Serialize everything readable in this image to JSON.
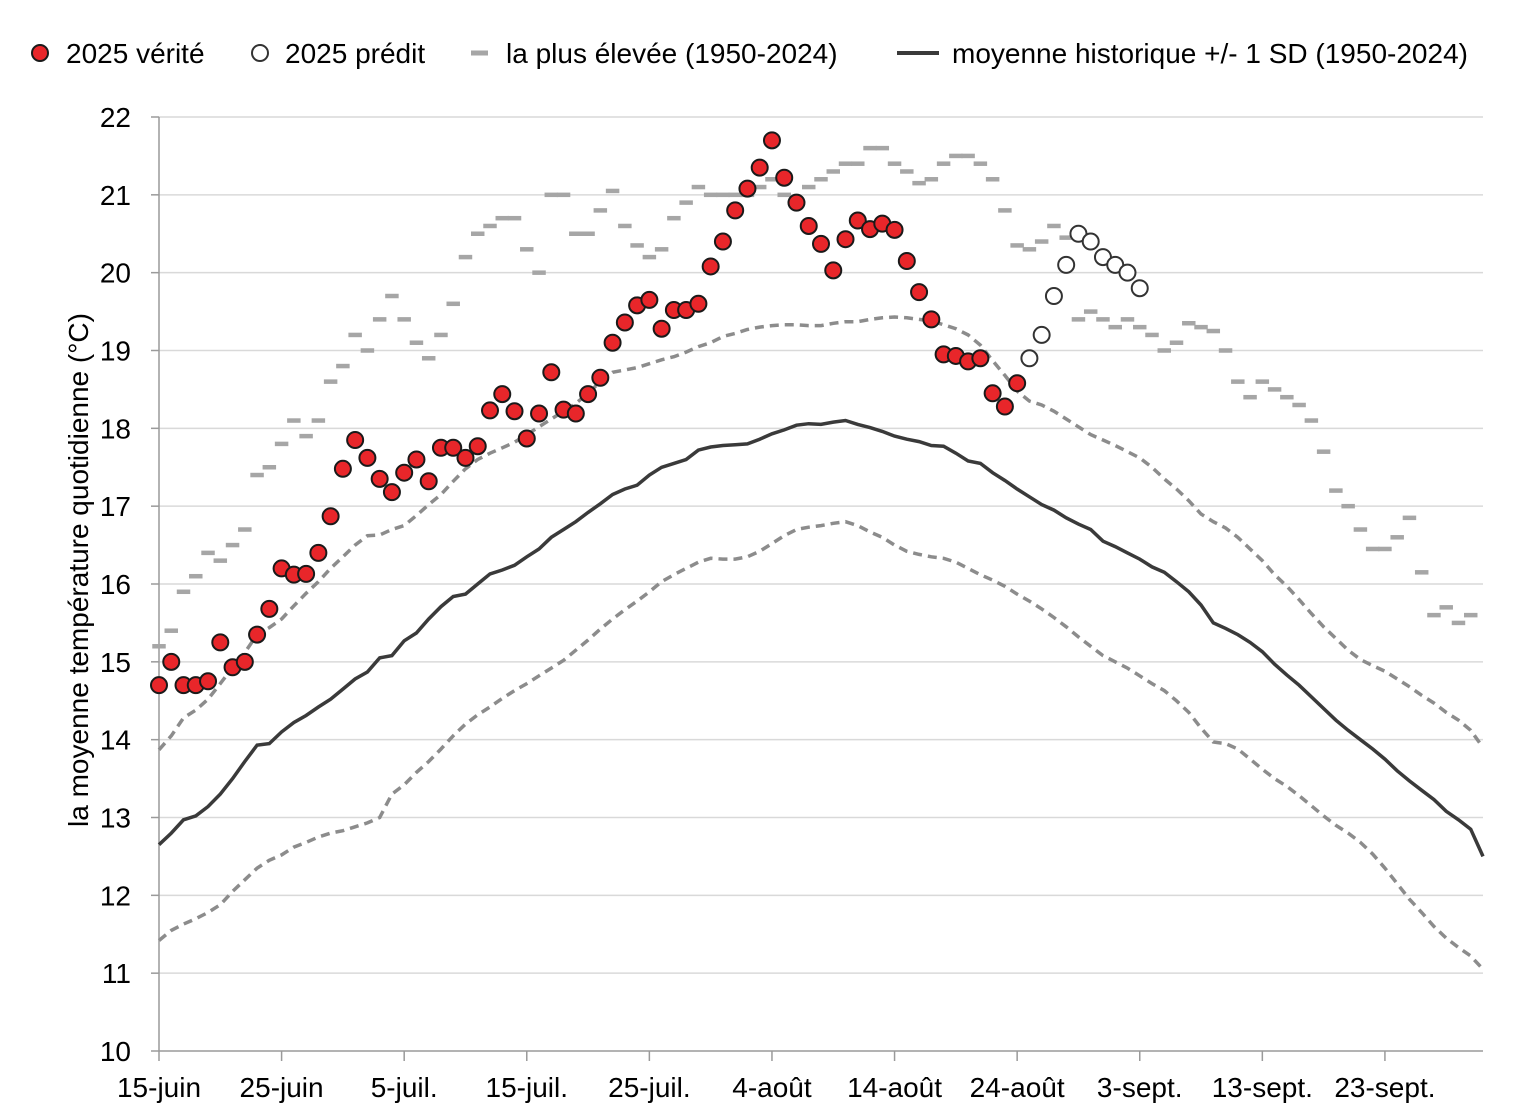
{
  "chart_data": {
    "type": "line",
    "ylabel": "la moyenne température quotidienne (°C)",
    "xlabel": "",
    "ylim": [
      10,
      22
    ],
    "y_ticks": [
      10,
      11,
      12,
      13,
      14,
      15,
      16,
      17,
      18,
      19,
      20,
      21,
      22
    ],
    "x_range_days": [
      0,
      108
    ],
    "x_tick_days": [
      0,
      10,
      20,
      30,
      40,
      50,
      60,
      70,
      80,
      90,
      100
    ],
    "x_tick_labels": [
      "15-juin",
      "25-juin",
      "5-juil.",
      "15-juil.",
      "25-juil.",
      "4-août",
      "14-août",
      "24-août",
      "3-sept.",
      "13-sept.",
      "23-sept."
    ],
    "grid": true,
    "legend_position": "top",
    "legend": [
      {
        "key": "truth",
        "label": "2025 vérité"
      },
      {
        "key": "predicted",
        "label": "2025 prédit"
      },
      {
        "key": "highest",
        "label": "la plus élevée (1950-2024)"
      },
      {
        "key": "mean",
        "label": "moyenne historique +/- 1 SD (1950-2024)"
      }
    ],
    "series": {
      "truth": {
        "start_day": 0,
        "values": [
          14.7,
          15.0,
          14.7,
          14.7,
          14.75,
          15.25,
          14.93,
          15.0,
          15.35,
          15.68,
          16.2,
          16.12,
          16.13,
          16.4,
          16.87,
          17.48,
          17.85,
          17.62,
          17.35,
          17.18,
          17.43,
          17.6,
          17.32,
          17.75,
          17.75,
          17.62,
          17.77,
          18.23,
          18.44,
          18.22,
          17.87,
          18.19,
          18.72,
          18.24,
          18.19,
          18.44,
          18.65,
          19.1,
          19.36,
          19.58,
          19.65,
          19.28,
          19.52,
          19.52,
          19.6,
          20.08,
          20.4,
          20.8,
          21.08,
          21.35,
          21.7,
          21.22,
          20.9,
          20.6,
          20.37,
          20.03,
          20.43,
          20.67,
          20.56,
          20.63,
          20.55,
          20.15,
          19.75,
          19.4,
          18.95,
          18.93,
          18.86,
          18.9,
          18.45,
          18.28,
          18.58
        ]
      },
      "predicted": {
        "start_day": 71,
        "values": [
          18.9,
          19.2,
          19.7,
          20.1,
          20.5,
          20.4,
          20.2,
          20.1,
          20.0,
          19.8
        ]
      },
      "highest": {
        "start_day": 0,
        "values": [
          15.2,
          15.4,
          15.9,
          16.1,
          16.4,
          16.3,
          16.5,
          16.7,
          17.4,
          17.5,
          17.8,
          18.1,
          17.9,
          18.1,
          18.6,
          18.8,
          19.2,
          19.0,
          19.4,
          19.7,
          19.4,
          19.1,
          18.9,
          19.2,
          19.6,
          20.2,
          20.5,
          20.6,
          20.7,
          20.7,
          20.3,
          20.0,
          21.0,
          21.0,
          20.5,
          20.5,
          20.8,
          21.05,
          20.6,
          20.35,
          20.2,
          20.3,
          20.7,
          20.9,
          21.1,
          21.0,
          21.0,
          21.0,
          21.0,
          21.1,
          21.2,
          21.0,
          20.9,
          21.1,
          21.2,
          21.3,
          21.4,
          21.4,
          21.6,
          21.6,
          21.4,
          21.3,
          21.15,
          21.2,
          21.4,
          21.5,
          21.5,
          21.4,
          21.2,
          20.8,
          20.35,
          20.3,
          20.4,
          20.6,
          20.45,
          19.4,
          19.5,
          19.4,
          19.3,
          19.4,
          19.3,
          19.2,
          19.0,
          19.1,
          19.35,
          19.3,
          19.25,
          19.0,
          18.6,
          18.4,
          18.6,
          18.5,
          18.4,
          18.3,
          18.1,
          17.7,
          17.2,
          17.0,
          16.7,
          16.45,
          16.45,
          16.6,
          16.85,
          16.15,
          15.6,
          15.7,
          15.5,
          15.6
        ]
      },
      "mean": {
        "start_day": 0,
        "values": [
          12.65,
          12.8,
          12.97,
          13.02,
          13.14,
          13.3,
          13.5,
          13.72,
          13.93,
          13.95,
          14.1,
          14.22,
          14.31,
          14.42,
          14.52,
          14.65,
          14.78,
          14.87,
          15.05,
          15.08,
          15.27,
          15.37,
          15.55,
          15.71,
          15.84,
          15.87,
          16.0,
          16.13,
          16.18,
          16.24,
          16.35,
          16.45,
          16.6,
          16.7,
          16.8,
          16.92,
          17.03,
          17.15,
          17.22,
          17.27,
          17.4,
          17.5,
          17.55,
          17.6,
          17.72,
          17.76,
          17.78,
          17.79,
          17.8,
          17.86,
          17.93,
          17.98,
          18.04,
          18.06,
          18.05,
          18.08,
          18.1,
          18.05,
          18.01,
          17.96,
          17.9,
          17.86,
          17.83,
          17.78,
          17.77,
          17.68,
          17.58,
          17.55,
          17.43,
          17.33,
          17.22,
          17.12,
          17.02,
          16.95,
          16.85,
          16.77,
          16.7,
          16.55,
          16.48,
          16.4,
          16.32,
          16.22,
          16.15,
          16.03,
          15.9,
          15.73,
          15.5,
          15.43,
          15.35,
          15.25,
          15.13,
          14.97,
          14.83,
          14.7,
          14.55,
          14.4,
          14.25,
          14.12,
          14.0,
          13.88,
          13.75,
          13.6,
          13.47,
          13.35,
          13.23,
          13.08,
          12.97,
          12.85,
          12.5
        ]
      },
      "upper_sd": {
        "start_day": 0,
        "values": [
          13.87,
          14.05,
          14.28,
          14.38,
          14.52,
          14.72,
          14.93,
          15.12,
          15.35,
          15.44,
          15.55,
          15.72,
          15.88,
          16.03,
          16.2,
          16.35,
          16.5,
          16.62,
          16.63,
          16.7,
          16.75,
          16.88,
          17.02,
          17.15,
          17.32,
          17.48,
          17.6,
          17.68,
          17.75,
          17.82,
          17.92,
          18.02,
          18.12,
          18.22,
          18.32,
          18.45,
          18.6,
          18.72,
          18.75,
          18.78,
          18.83,
          18.88,
          18.92,
          18.98,
          19.05,
          19.1,
          19.18,
          19.22,
          19.27,
          19.3,
          19.32,
          19.33,
          19.33,
          19.32,
          19.32,
          19.35,
          19.37,
          19.37,
          19.4,
          19.42,
          19.43,
          19.42,
          19.4,
          19.38,
          19.33,
          19.28,
          19.2,
          19.07,
          18.87,
          18.68,
          18.48,
          18.35,
          18.3,
          18.22,
          18.12,
          18.02,
          17.92,
          17.85,
          17.78,
          17.7,
          17.62,
          17.5,
          17.35,
          17.22,
          17.07,
          16.9,
          16.8,
          16.72,
          16.6,
          16.45,
          16.3,
          16.12,
          15.97,
          15.8,
          15.62,
          15.45,
          15.3,
          15.15,
          15.03,
          14.95,
          14.88,
          14.78,
          14.68,
          14.57,
          14.47,
          14.35,
          14.25,
          14.12,
          13.9
        ]
      },
      "lower_sd": {
        "start_day": 0,
        "values": [
          11.42,
          11.55,
          11.63,
          11.7,
          11.78,
          11.88,
          12.05,
          12.2,
          12.35,
          12.45,
          12.52,
          12.62,
          12.68,
          12.75,
          12.8,
          12.83,
          12.88,
          12.93,
          13.0,
          13.3,
          13.42,
          13.58,
          13.72,
          13.88,
          14.05,
          14.2,
          14.32,
          14.42,
          14.53,
          14.63,
          14.72,
          14.82,
          14.92,
          15.02,
          15.15,
          15.28,
          15.42,
          15.55,
          15.67,
          15.78,
          15.9,
          16.03,
          16.12,
          16.2,
          16.28,
          16.33,
          16.32,
          16.32,
          16.35,
          16.42,
          16.52,
          16.62,
          16.7,
          16.73,
          16.75,
          16.78,
          16.8,
          16.75,
          16.67,
          16.6,
          16.5,
          16.42,
          16.38,
          16.35,
          16.33,
          16.28,
          16.2,
          16.12,
          16.05,
          15.97,
          15.87,
          15.78,
          15.68,
          15.57,
          15.45,
          15.32,
          15.2,
          15.08,
          15.0,
          14.92,
          14.82,
          14.72,
          14.63,
          14.5,
          14.35,
          14.15,
          13.97,
          13.95,
          13.88,
          13.75,
          13.62,
          13.5,
          13.4,
          13.28,
          13.15,
          13.02,
          12.9,
          12.8,
          12.68,
          12.53,
          12.35,
          12.15,
          11.95,
          11.78,
          11.6,
          11.45,
          11.33,
          11.22,
          11.05
        ]
      }
    }
  },
  "style": {
    "truth_fill": "#e8262a",
    "truth_stroke": "#1a1a1a",
    "predicted_stroke": "#333333",
    "highest_color": "#a6a6a6",
    "mean_color": "#3a3a3a",
    "sd_color": "#8c8c8c",
    "grid_color": "#d9d9d9",
    "axis_color": "#9a9a9a"
  }
}
